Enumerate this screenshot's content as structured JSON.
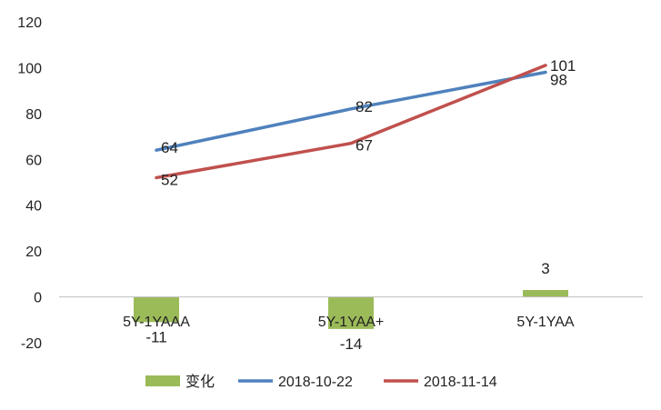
{
  "chart_data": {
    "type": "bar+line",
    "categories": [
      "5Y-1YAAA",
      "5Y-1YAA+",
      "5Y-1YAA"
    ],
    "series": [
      {
        "name": "变化",
        "kind": "bar",
        "color": "#9BBB59",
        "values": [
          -11,
          -14,
          3
        ]
      },
      {
        "name": "2018-10-22",
        "kind": "line",
        "color": "#4F81BD",
        "values": [
          64,
          82,
          98
        ]
      },
      {
        "name": "2018-11-14",
        "kind": "line",
        "color": "#C0504D",
        "values": [
          52,
          67,
          101
        ]
      }
    ],
    "ylim": [
      -20,
      120
    ],
    "yticks": [
      -20,
      0,
      20,
      40,
      60,
      80,
      100,
      120
    ],
    "grid": false,
    "legend": "bottom",
    "title": "",
    "xlabel": "",
    "ylabel": ""
  }
}
